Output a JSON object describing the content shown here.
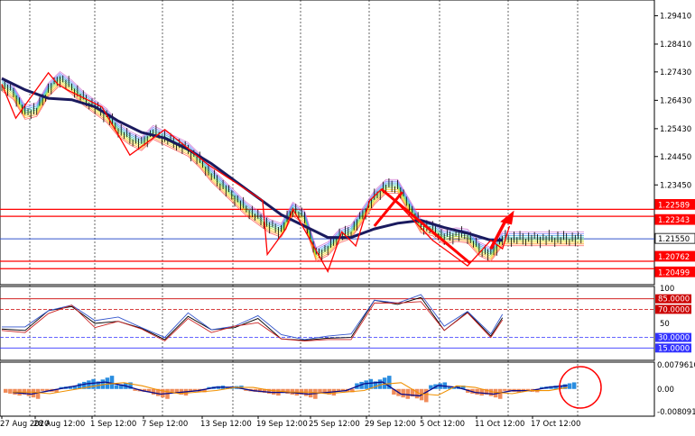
{
  "colors": {
    "background": "#ffffff",
    "grid": "#000000",
    "price_candles": "#000000",
    "ribbon_slow_ma": "#1a1a5e",
    "support_resistance_lines": "#ff0000",
    "current_price_line": "#3355cc",
    "zigzag": "#ff0000",
    "rsi_main": "#000000",
    "rsi_signal_blue": "#3355cc",
    "rsi_signal_red": "#cc2222",
    "level_line_red": "#cc0000",
    "level_line_blue": "#3333ff",
    "histogram_positive": "#2a8de0",
    "histogram_negative": "#f08c5a",
    "macd_line": "#0a0a8a",
    "signal_line": "#f09000",
    "annotation_circle": "#ff0000"
  },
  "price_axis": {
    "ticks": [
      "1.29410",
      "1.28410",
      "1.27430",
      "1.26430",
      "1.25430",
      "1.24450",
      "1.23450"
    ],
    "tags": [
      {
        "label": "1.22589",
        "style": "red"
      },
      {
        "label": "1.22343",
        "style": "red"
      },
      {
        "label": "1.21550",
        "style": "current"
      },
      {
        "label": "1.20762",
        "style": "red"
      },
      {
        "label": "1.20499",
        "style": "red"
      }
    ]
  },
  "rsi_axis": {
    "ticks": [
      "100",
      "50"
    ],
    "tags": [
      {
        "label": "85.0000",
        "style": "red"
      },
      {
        "label": "70.0000",
        "style": "red"
      },
      {
        "label": "30.0000",
        "style": "blue"
      },
      {
        "label": "15.0000",
        "style": "blue"
      }
    ]
  },
  "osc_axis": {
    "ticks": [
      "0.0079610",
      "0.00",
      "-0.0080917"
    ]
  },
  "time_axis": {
    "labels": [
      "27 Aug 2020",
      "28 Aug 12:00",
      "1 Sep 12:00",
      "7 Sep 12:00",
      "13 Sep 12:00",
      "19 Sep 12:00",
      "25 Sep 12:00",
      "29 Sep 12:00",
      "5 Oct 12:00",
      "11 Oct 12:00",
      "17 Oct 12:00"
    ]
  },
  "chart_data": [
    {
      "type": "line",
      "panel": "price",
      "series": [
        {
          "x": [
            0,
            5,
            10,
            15,
            20,
            25,
            30,
            35,
            40,
            45,
            50,
            55,
            60,
            65,
            70,
            75,
            80,
            85,
            90,
            95,
            100,
            105,
            110,
            115,
            120,
            125,
            130,
            135,
            140,
            145,
            150,
            155,
            160,
            165,
            170,
            175,
            180,
            185,
            190,
            195,
            200,
            205,
            210,
            215,
            220,
            225,
            230,
            235,
            240,
            245,
            250
          ],
          "values": [
            1.27,
            1.267,
            1.26,
            1.261,
            1.268,
            1.272,
            1.269,
            1.265,
            1.262,
            1.259,
            1.254,
            1.251,
            1.249,
            1.253,
            1.251,
            1.249,
            1.247,
            1.243,
            1.238,
            1.234,
            1.23,
            1.226,
            1.223,
            1.22,
            1.2185,
            1.226,
            1.223,
            1.21,
            1.212,
            1.2165,
            1.218,
            1.224,
            1.23,
            1.234,
            1.234,
            1.227,
            1.22,
            1.219,
            1.216,
            1.217,
            1.2165,
            1.212,
            1.21,
            1.2155,
            1.2155,
            1.2155,
            1.2155,
            1.2155,
            1.2155,
            1.2155,
            1.2155
          ]
        },
        {
          "name": "",
          "x": [
            0,
            10,
            20,
            30,
            40,
            50,
            60,
            70,
            80,
            90,
            100,
            110,
            120,
            130,
            140,
            150,
            160,
            170,
            180,
            190,
            200,
            210,
            215
          ],
          "values": [
            1.272,
            1.268,
            1.265,
            1.2645,
            1.262,
            1.257,
            1.253,
            1.251,
            1.247,
            1.242,
            1.236,
            1.23,
            1.224,
            1.22,
            1.216,
            1.216,
            1.219,
            1.221,
            1.222,
            1.2195,
            1.2175,
            1.215,
            1.215
          ]
        }
      ],
      "zigzag": {
        "x": [
          0,
          6,
          20,
          24,
          28,
          43,
          55,
          70,
          88,
          112,
          114,
          122,
          125,
          140,
          146,
          152,
          158,
          163,
          170,
          185,
          200,
          210,
          215,
          218
        ],
        "values": [
          1.27,
          1.258,
          1.274,
          1.27,
          1.268,
          1.262,
          1.245,
          1.254,
          1.242,
          1.229,
          1.21,
          1.219,
          1.226,
          1.204,
          1.218,
          1.213,
          1.229,
          1.233,
          1.228,
          1.215,
          1.206,
          1.215,
          1.212,
          1.22
        ]
      },
      "levels": [
        1.22589,
        1.22343,
        1.2155,
        1.20762,
        1.20499
      ]
    },
    {
      "type": "line",
      "panel": "rsi",
      "ylim": [
        0,
        100
      ],
      "levels": [
        85,
        70,
        30,
        15
      ],
      "series": [
        {
          "x": [
            0,
            10,
            20,
            30,
            40,
            50,
            60,
            70,
            80,
            90,
            100,
            110,
            120,
            130,
            140,
            150,
            160,
            170,
            180,
            190,
            200,
            210,
            215
          ],
          "values": [
            45,
            40,
            65,
            75,
            48,
            55,
            42,
            30,
            60,
            38,
            45,
            55,
            30,
            25,
            32,
            30,
            80,
            78,
            85,
            42,
            65,
            35,
            58
          ]
        }
      ]
    },
    {
      "type": "bar",
      "panel": "oscillator",
      "ylim": [
        -0.0080917,
        0.007961
      ],
      "values": [
        -0.002,
        -0.003,
        -0.001,
        0.001,
        0.003,
        0.004,
        0.002,
        -0.001,
        -0.003,
        -0.002,
        -0.001,
        0.001,
        0.001,
        -0.001,
        -0.002,
        -0.002,
        -0.003,
        -0.002,
        -0.001,
        0.003,
        0.004,
        -0.003,
        -0.004,
        0.002,
        0.001,
        -0.002,
        -0.003,
        -0.001,
        -0.001,
        0.001,
        0.002
      ]
    }
  ]
}
